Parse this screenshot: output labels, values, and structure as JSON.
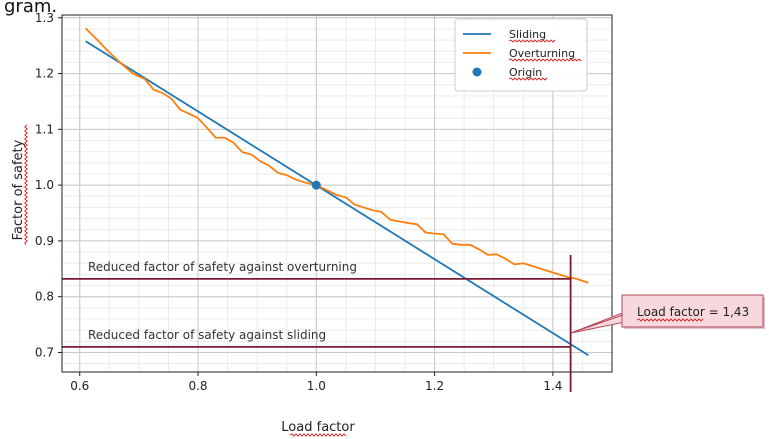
{
  "top_fragment": "gram.",
  "chart_data": {
    "type": "line",
    "xlabel": "Load factor",
    "ylabel": "Factor of safety",
    "xlim": [
      0.57,
      1.5
    ],
    "ylim": [
      0.665,
      1.305
    ],
    "x_ticks": [
      0.6,
      0.8,
      1.0,
      1.2,
      1.4
    ],
    "x_tick_labels": [
      "0.6",
      "0.8",
      "1.0",
      "1.2",
      "1.4"
    ],
    "y_ticks": [
      0.7,
      0.8,
      0.9,
      1.0,
      1.1,
      1.2,
      1.3
    ],
    "y_tick_labels": [
      "0.7",
      "0.8",
      "0.9",
      "1.0",
      "1.1",
      "1.2",
      "1.3"
    ],
    "grid": true,
    "minor_grid": true,
    "legend_position": "top-right",
    "series": [
      {
        "name": "Sliding",
        "color": "#1f77b4",
        "style": "line",
        "x": [
          0.61,
          1.46
        ],
        "y": [
          1.258,
          0.695
        ]
      },
      {
        "name": "Overturning",
        "color": "#ff7f0e",
        "style": "line",
        "x": [
          0.61,
          0.63,
          0.65,
          0.67,
          0.69,
          0.71,
          0.725,
          0.74,
          0.755,
          0.77,
          0.785,
          0.8,
          0.815,
          0.83,
          0.845,
          0.86,
          0.875,
          0.89,
          0.905,
          0.92,
          0.935,
          0.95,
          0.965,
          0.98,
          1.0,
          1.02,
          1.035,
          1.05,
          1.065,
          1.08,
          1.095,
          1.11,
          1.125,
          1.14,
          1.155,
          1.17,
          1.185,
          1.2,
          1.215,
          1.23,
          1.245,
          1.26,
          1.275,
          1.29,
          1.305,
          1.32,
          1.335,
          1.35,
          1.365,
          1.38,
          1.395,
          1.41,
          1.425,
          1.44,
          1.46
        ],
        "y": [
          1.281,
          1.26,
          1.238,
          1.218,
          1.2,
          1.19,
          1.171,
          1.165,
          1.155,
          1.135,
          1.128,
          1.12,
          1.103,
          1.085,
          1.085,
          1.076,
          1.059,
          1.055,
          1.043,
          1.035,
          1.022,
          1.018,
          1.01,
          1.005,
          1.0,
          0.99,
          0.982,
          0.978,
          0.965,
          0.96,
          0.955,
          0.952,
          0.938,
          0.935,
          0.932,
          0.93,
          0.915,
          0.913,
          0.912,
          0.895,
          0.893,
          0.893,
          0.885,
          0.875,
          0.876,
          0.868,
          0.858,
          0.86,
          0.855,
          0.85,
          0.845,
          0.84,
          0.835,
          0.832,
          0.825
        ]
      },
      {
        "name": "Origin",
        "color": "#1f77b4",
        "style": "point",
        "x": [
          1.0
        ],
        "y": [
          1.0
        ]
      }
    ],
    "annotations": [
      {
        "id": "overturning",
        "text": "Reduced factor of safety against overturning",
        "y": 0.832,
        "color": "#7a1a33"
      },
      {
        "id": "sliding",
        "text": "Reduced factor of safety against sliding",
        "y": 0.71,
        "color": "#7a1a33"
      }
    ],
    "vertical_marker": {
      "x": 1.43,
      "color": "#7a1a33"
    },
    "callout": {
      "text": "Load factor = 1,43",
      "fill": "#f7d8dc",
      "border": "#b04a5a"
    }
  }
}
